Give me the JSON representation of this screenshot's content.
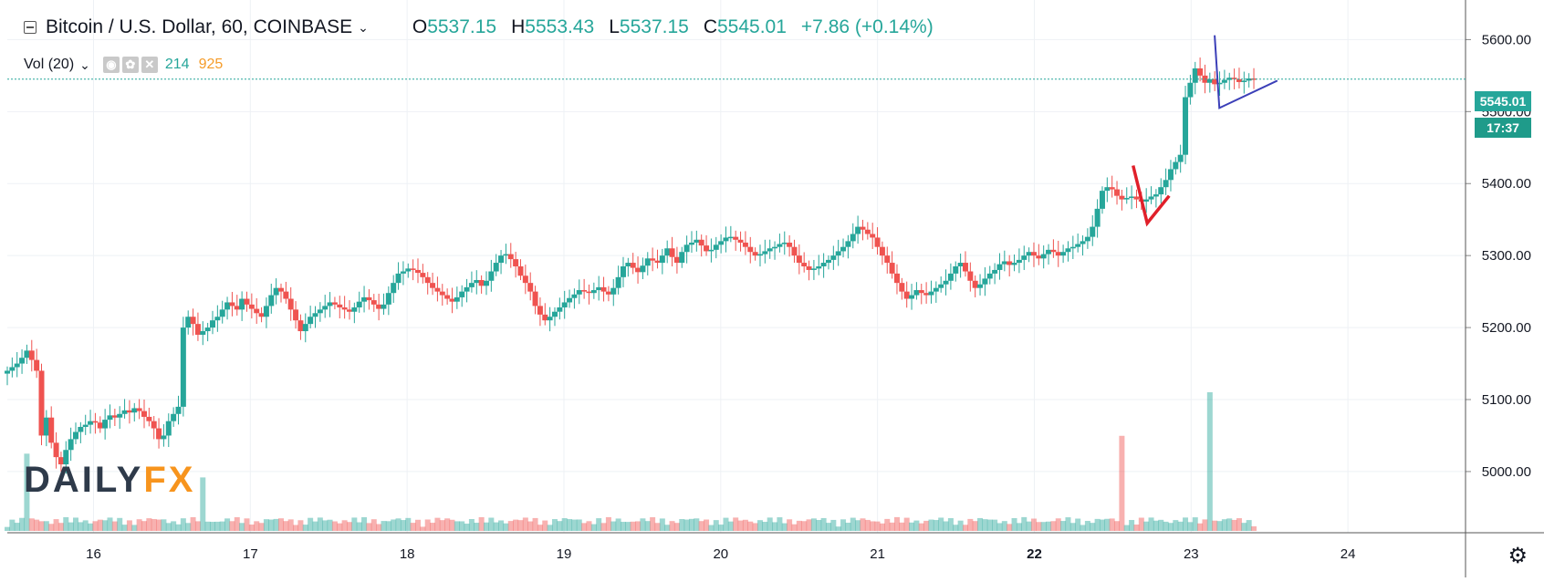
{
  "legend": {
    "symbol": "Bitcoin / U.S. Dollar, 60, COINBASE",
    "open_key": "O",
    "open_val": "5537.15",
    "high_key": "H",
    "high_val": "5553.43",
    "low_key": "L",
    "low_val": "5537.15",
    "close_key": "C",
    "close_val": "5545.01",
    "change": "+7.86 (+0.14%)"
  },
  "volume_legend": {
    "label": "Vol (20)",
    "value_green": "214",
    "value_orange": "925"
  },
  "price_tag": {
    "last": "5545.01",
    "countdown": "17:37"
  },
  "watermark": {
    "daily": "DAILY",
    "fx": "FX"
  },
  "colors": {
    "up": "#26a69a",
    "down": "#ef5350",
    "grid": "#eef1f5",
    "red_pennant": "#e0202a",
    "blue_pennant": "#3b3fb8"
  },
  "icons": {
    "settings": "gear-icon"
  },
  "chart_data": {
    "type": "candlestick",
    "title": "Bitcoin / U.S. Dollar, 60, COINBASE",
    "ylim": [
      4915,
      5655
    ],
    "y_ticks": [
      "5600.00",
      "5500.00",
      "5400.00",
      "5300.00",
      "5200.00",
      "5100.00",
      "5000.00"
    ],
    "x_ticks": [
      "16",
      "17",
      "18",
      "19",
      "20",
      "21",
      "22",
      "23",
      "24"
    ],
    "x_bold_tick": "22",
    "x_range_days": [
      15.45,
      24.75
    ],
    "last_price": 5545.01,
    "series": [
      {
        "type": "close_path_hourly",
        "values": [
          5140,
          5145,
          5150,
          5158,
          5168,
          5155,
          5140,
          5050,
          5075,
          5040,
          5020,
          5010,
          5030,
          5045,
          5055,
          5062,
          5065,
          5070,
          5068,
          5060,
          5072,
          5078,
          5075,
          5080,
          5085,
          5082,
          5088,
          5084,
          5076,
          5070,
          5060,
          5045,
          5050,
          5070,
          5080,
          5090,
          5200,
          5215,
          5205,
          5190,
          5195,
          5200,
          5210,
          5215,
          5225,
          5235,
          5230,
          5225,
          5240,
          5232,
          5226,
          5220,
          5215,
          5230,
          5245,
          5255,
          5250,
          5240,
          5225,
          5210,
          5195,
          5205,
          5215,
          5220,
          5225,
          5230,
          5235,
          5232,
          5228,
          5225,
          5222,
          5228,
          5236,
          5242,
          5238,
          5232,
          5226,
          5232,
          5248,
          5262,
          5275,
          5278,
          5282,
          5280,
          5276,
          5270,
          5262,
          5255,
          5250,
          5245,
          5240,
          5236,
          5242,
          5250,
          5256,
          5262,
          5266,
          5258,
          5265,
          5278,
          5290,
          5300,
          5302,
          5295,
          5285,
          5272,
          5262,
          5250,
          5230,
          5218,
          5210,
          5215,
          5222,
          5228,
          5235,
          5241,
          5246,
          5252,
          5250,
          5248,
          5252,
          5256,
          5250,
          5246,
          5255,
          5270,
          5285,
          5290,
          5283,
          5277,
          5286,
          5296,
          5293,
          5290,
          5300,
          5310,
          5298,
          5290,
          5305,
          5315,
          5318,
          5322,
          5314,
          5306,
          5308,
          5315,
          5320,
          5325,
          5326,
          5322,
          5318,
          5312,
          5305,
          5300,
          5302,
          5306,
          5310,
          5312,
          5316,
          5318,
          5312,
          5300,
          5290,
          5285,
          5280,
          5282,
          5285,
          5290,
          5294,
          5300,
          5306,
          5312,
          5320,
          5330,
          5340,
          5336,
          5330,
          5325,
          5312,
          5300,
          5290,
          5275,
          5262,
          5250,
          5240,
          5245,
          5252,
          5248,
          5245,
          5250,
          5255,
          5260,
          5265,
          5275,
          5285,
          5290,
          5278,
          5265,
          5255,
          5260,
          5268,
          5275,
          5280,
          5288,
          5292,
          5287,
          5290,
          5294,
          5300,
          5305,
          5300,
          5296,
          5302,
          5308,
          5305,
          5300,
          5305,
          5310,
          5312,
          5316,
          5320,
          5326,
          5340,
          5365,
          5390,
          5395,
          5392,
          5383,
          5378,
          5380,
          5382,
          5378,
          5375,
          5378,
          5382,
          5385,
          5395,
          5405,
          5420,
          5430,
          5440,
          5520,
          5540,
          5560,
          5550,
          5540,
          5545,
          5538,
          5540,
          5544,
          5547,
          5545,
          5541,
          5543,
          5546,
          5545
        ]
      },
      {
        "type": "volume",
        "peaks": [
          {
            "x": 15.58,
            "value": 780
          },
          {
            "x": 16.7,
            "value": 540
          },
          {
            "x": 22.55,
            "value": 960
          },
          {
            "x": 23.12,
            "value": 1400
          }
        ]
      }
    ],
    "annotations": [
      {
        "type": "triangle",
        "color": "red",
        "points": [
          [
            22.63,
            5425
          ],
          [
            22.72,
            5345
          ],
          [
            22.86,
            5383
          ]
        ]
      },
      {
        "type": "triangle",
        "color": "blue",
        "points": [
          [
            23.15,
            5606
          ],
          [
            23.18,
            5505
          ],
          [
            23.55,
            5543
          ]
        ]
      }
    ]
  }
}
